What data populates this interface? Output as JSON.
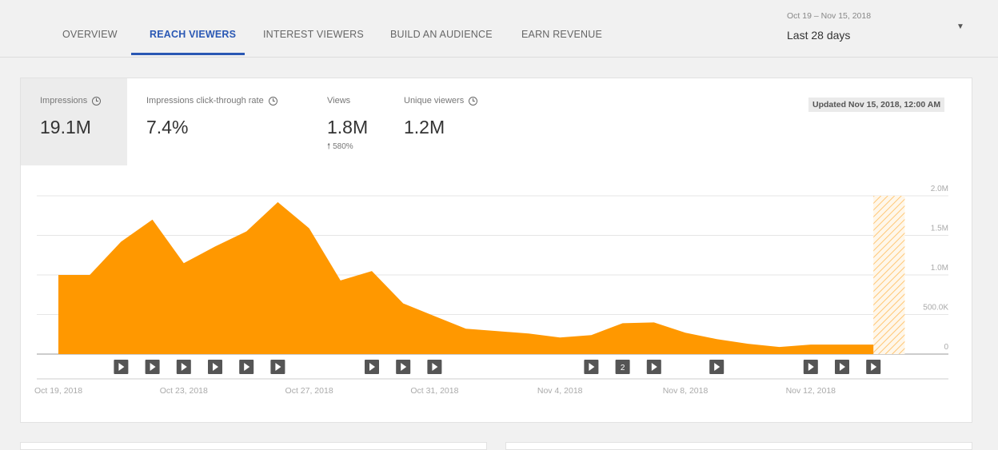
{
  "tabs": [
    {
      "label": "OVERVIEW",
      "active": false
    },
    {
      "label": "REACH VIEWERS",
      "active": true
    },
    {
      "label": "INTEREST VIEWERS",
      "active": false
    },
    {
      "label": "BUILD AN AUDIENCE",
      "active": false
    },
    {
      "label": "EARN REVENUE",
      "active": false
    }
  ],
  "date_picker": {
    "range": "Oct 19 – Nov 15, 2018",
    "label": "Last 28 days"
  },
  "metrics": [
    {
      "label": "Impressions",
      "value": "19.1M",
      "delta": "",
      "selected": true
    },
    {
      "label": "Impressions click-through rate",
      "value": "7.4%",
      "delta": "",
      "selected": false
    },
    {
      "label": "Views",
      "value": "1.8M",
      "delta": "580%",
      "selected": false
    },
    {
      "label": "Unique viewers",
      "value": "1.2M",
      "delta": "",
      "selected": false
    }
  ],
  "updated": "Updated Nov 15, 2018, 12:00 AM",
  "colors": {
    "accent": "#2a58b4",
    "series": "#ff9800",
    "marker": "#555555"
  },
  "chart_data": {
    "type": "area",
    "ylim": [
      0,
      2000000
    ],
    "yticks": [
      "2.0M",
      "1.5M",
      "1.0M",
      "500.0K",
      "0"
    ],
    "ytick_values": [
      2000000,
      1500000,
      1000000,
      500000,
      0
    ],
    "xtick_labels": [
      "Oct 19, 2018",
      "Oct 23, 2018",
      "Oct 27, 2018",
      "Oct 31, 2018",
      "Nov 4, 2018",
      "Nov 8, 2018",
      "Nov 12, 2018"
    ],
    "xtick_days": [
      0,
      4,
      8,
      12,
      16,
      20,
      24
    ],
    "series": [
      {
        "values": [
          1000000,
          1000000,
          1420000,
          1700000,
          1150000,
          1360000,
          1550000,
          1920000,
          1590000,
          930000,
          1050000,
          640000,
          480000,
          320000,
          290000,
          260000,
          210000,
          240000,
          390000,
          400000,
          270000,
          190000,
          130000,
          90000,
          120000,
          120000,
          120000
        ]
      }
    ],
    "incomplete_period": {
      "from_day": 26,
      "to_day": 27
    },
    "video_markers": [
      {
        "day": 2,
        "label": ""
      },
      {
        "day": 3,
        "label": ""
      },
      {
        "day": 4,
        "label": ""
      },
      {
        "day": 5,
        "label": ""
      },
      {
        "day": 6,
        "label": ""
      },
      {
        "day": 7,
        "label": ""
      },
      {
        "day": 10,
        "label": ""
      },
      {
        "day": 11,
        "label": ""
      },
      {
        "day": 12,
        "label": ""
      },
      {
        "day": 17,
        "label": ""
      },
      {
        "day": 18,
        "label": "2"
      },
      {
        "day": 19,
        "label": ""
      },
      {
        "day": 21,
        "label": ""
      },
      {
        "day": 24,
        "label": ""
      },
      {
        "day": 25,
        "label": ""
      },
      {
        "day": 26,
        "label": ""
      }
    ]
  }
}
